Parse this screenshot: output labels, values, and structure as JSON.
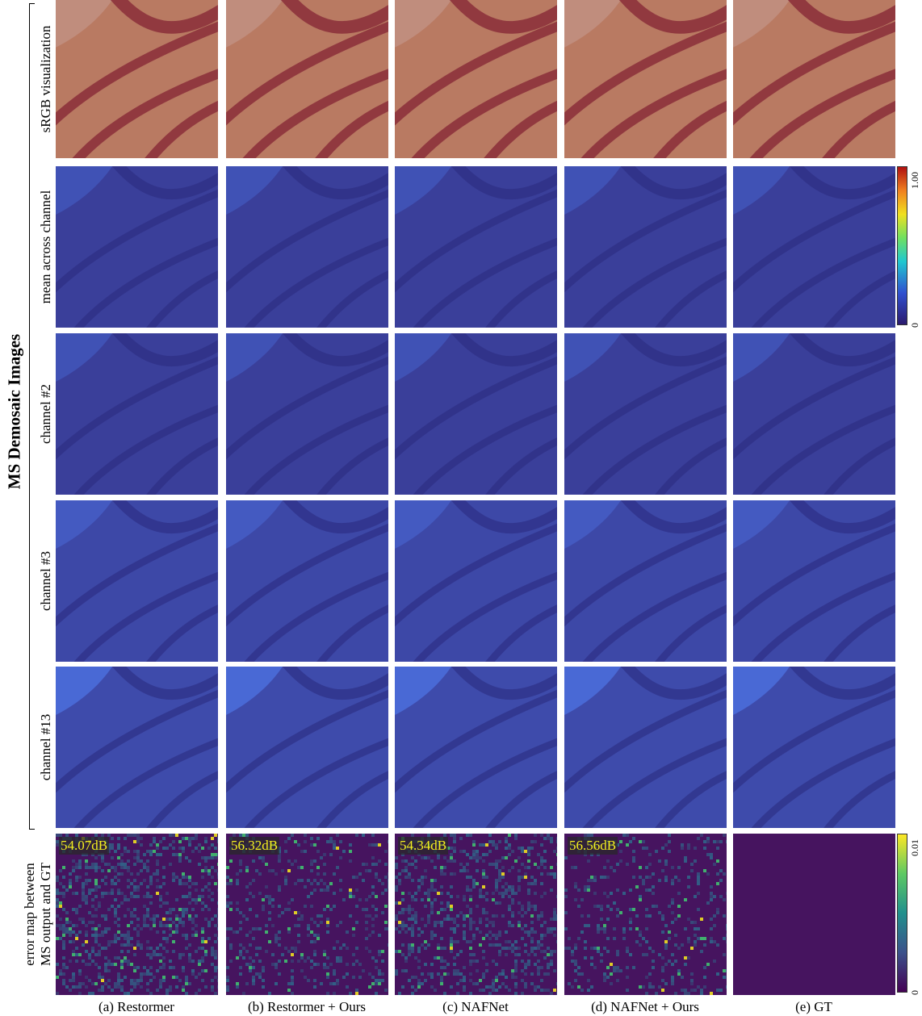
{
  "figure": {
    "side_title": "MS Demosaic Images",
    "row_labels": [
      [
        "sRGB visualization"
      ],
      [
        "mean across channel"
      ],
      [
        "channel #2"
      ],
      [
        "channel #3"
      ],
      [
        "channel #13"
      ],
      [
        "error map between",
        "MS output and GT"
      ]
    ],
    "columns": [
      "(a) Restormer",
      "(b) Restormer + Ours",
      "(c) NAFNet",
      "(d) NAFNet + Ours",
      "(e) GT"
    ],
    "psnr": [
      "54.07dB",
      "56.32dB",
      "54.34dB",
      "56.56dB",
      ""
    ],
    "colorbar_channel": {
      "min": "0",
      "max": "1.00"
    },
    "colorbar_error": {
      "min": "0",
      "max": "0.01"
    },
    "colors": {
      "srgb_base": "#b97a62",
      "srgb_stripe": "#8a2e3a",
      "srgb_light": "#c9a4a0",
      "ch_base": "#3a3f9a",
      "ch_stripe": "#2c2c80",
      "ch_light": "#4a6ad8",
      "err_base": "#46145f",
      "err_mid": "#2e6e8e",
      "err_hi": "#40c070",
      "err_peak": "#f0e020"
    }
  }
}
